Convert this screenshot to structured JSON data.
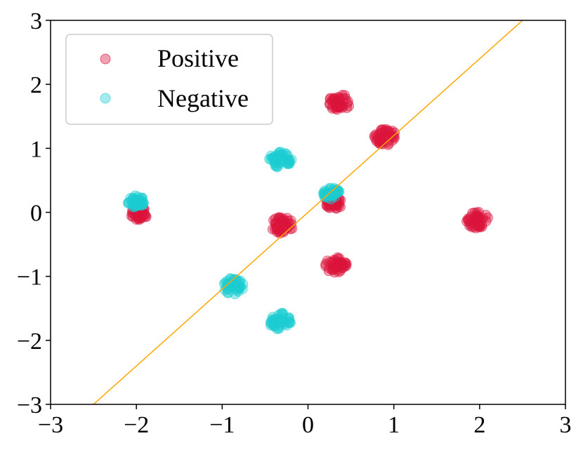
{
  "chart_data": {
    "type": "scatter",
    "title": "",
    "xlabel": "",
    "ylabel": "",
    "xlim": [
      -3,
      3
    ],
    "ylim": [
      -3,
      3
    ],
    "xticks": [
      -3,
      -2,
      -1,
      0,
      1,
      2,
      3
    ],
    "yticks": [
      -3,
      -2,
      -1,
      0,
      1,
      2,
      3
    ],
    "xtick_labels": [
      "−3",
      "−2",
      "−1",
      "0",
      "1",
      "2",
      "3"
    ],
    "ytick_labels": [
      "−3",
      "−2",
      "−1",
      "0",
      "1",
      "2",
      "3"
    ],
    "grid": false,
    "legend_position": "top-left",
    "colors": {
      "positive": "#DC143C",
      "negative": "#1CCDD2",
      "line": "#FFA500"
    },
    "series": [
      {
        "name": "Positive",
        "color": "#DC143C",
        "clusters": [
          {
            "x": 0.37,
            "y": 1.72,
            "spread": 0.13
          },
          {
            "x": 0.9,
            "y": 1.18,
            "spread": 0.13
          },
          {
            "x": -0.3,
            "y": -0.2,
            "spread": 0.13
          },
          {
            "x": 1.97,
            "y": -0.12,
            "spread": 0.13
          },
          {
            "x": 0.33,
            "y": -0.82,
            "spread": 0.13
          },
          {
            "x": -1.97,
            "y": -0.02,
            "spread": 0.1
          },
          {
            "x": 0.3,
            "y": 0.15,
            "spread": 0.1
          }
        ]
      },
      {
        "name": "Negative",
        "color": "#1CCDD2",
        "clusters": [
          {
            "x": -0.32,
            "y": 0.83,
            "spread": 0.13
          },
          {
            "x": -2.0,
            "y": 0.17,
            "spread": 0.1
          },
          {
            "x": 0.27,
            "y": 0.3,
            "spread": 0.1
          },
          {
            "x": -0.87,
            "y": -1.15,
            "spread": 0.13
          },
          {
            "x": -0.33,
            "y": -1.7,
            "spread": 0.13
          }
        ]
      }
    ],
    "line": {
      "slope": 1.2,
      "intercept": 0.0,
      "color": "#FFA500"
    },
    "legend": [
      {
        "label": "Positive",
        "color": "#DC143C"
      },
      {
        "label": "Negative",
        "color": "#1CCDD2"
      }
    ]
  }
}
